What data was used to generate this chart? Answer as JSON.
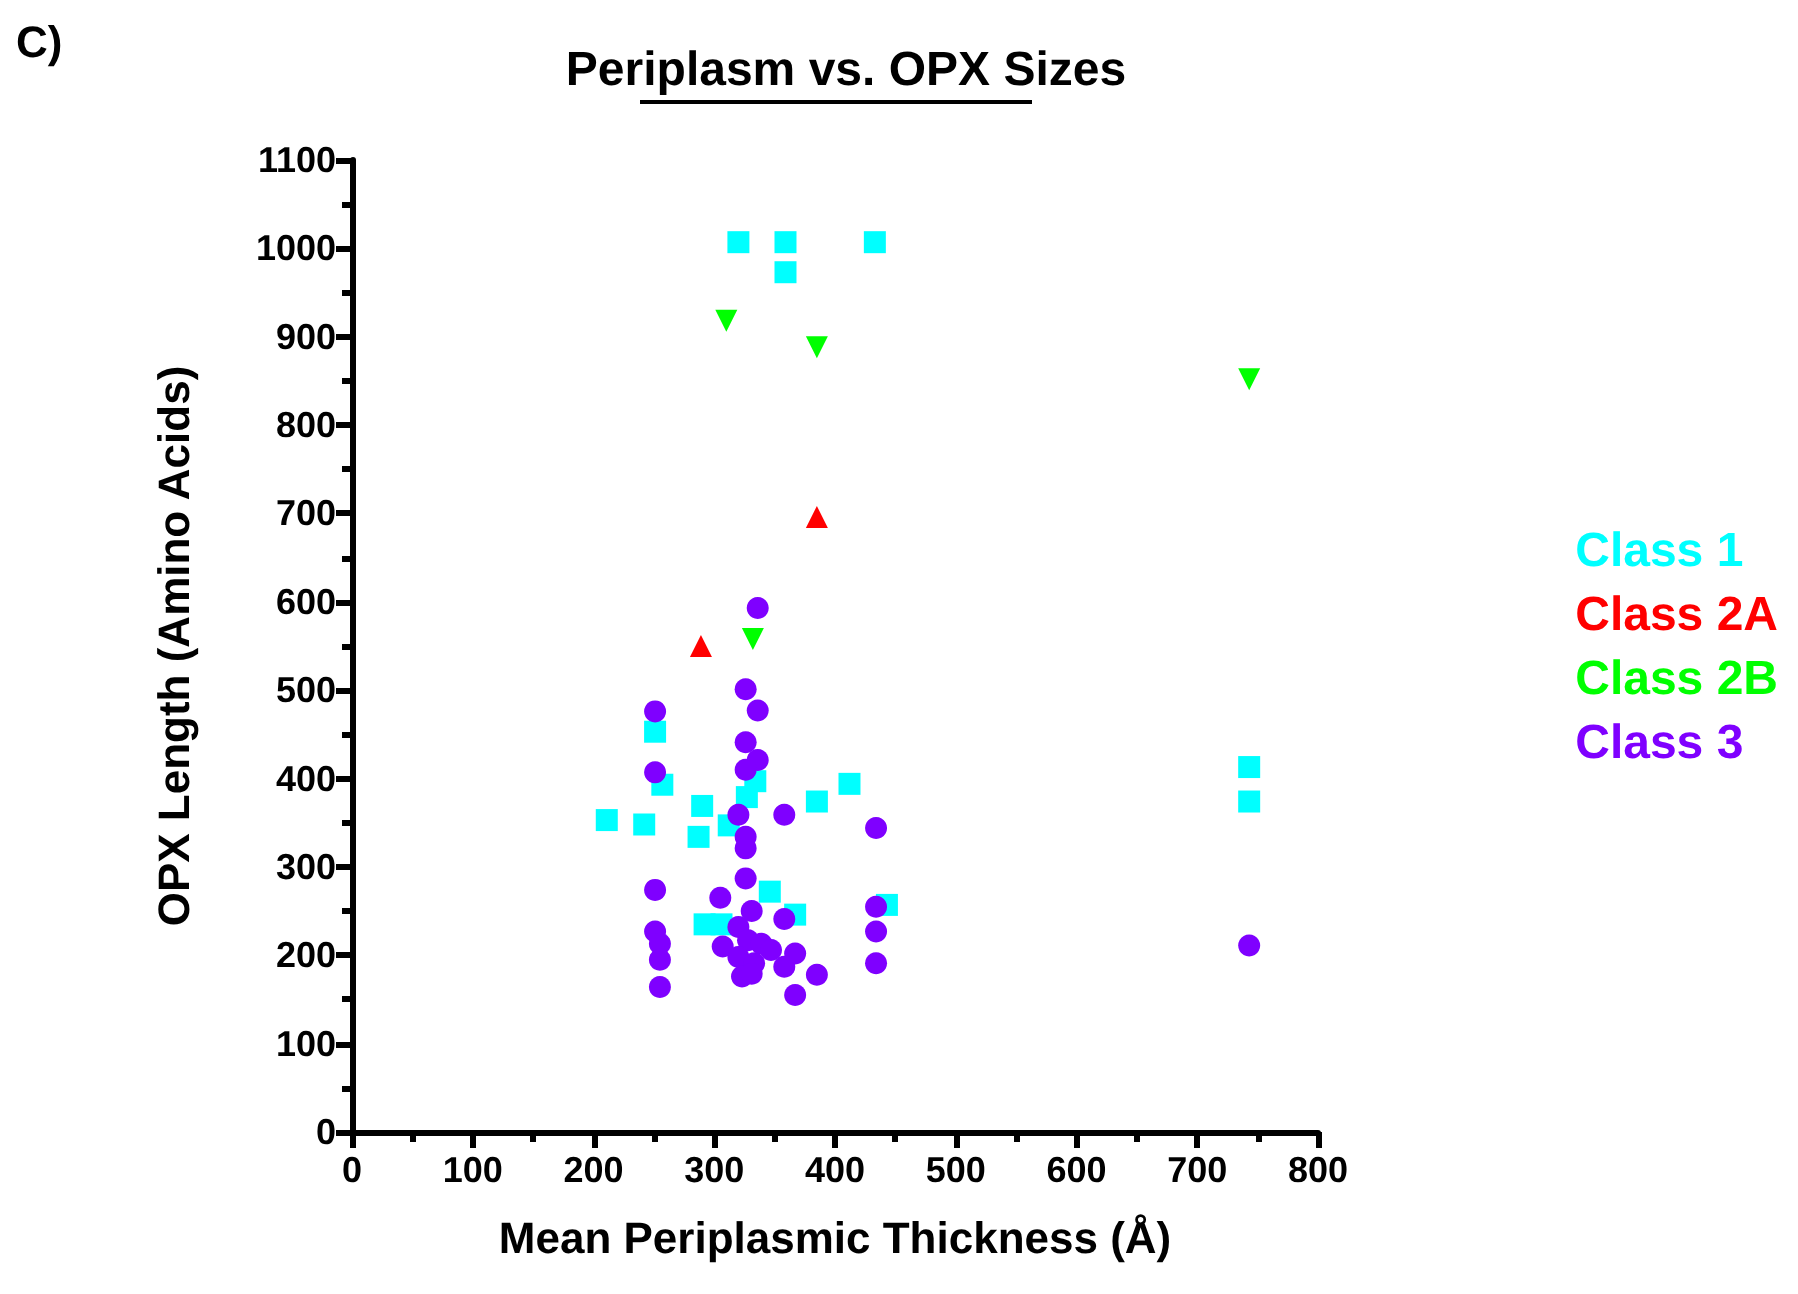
{
  "chart_data": {
    "type": "scatter",
    "title": "Periplasm vs. OPX Sizes",
    "xlabel": "Mean Periplasmic Thickness (Å)",
    "ylabel": "OPX Length (Amino Acids)",
    "annotations": [
      "C)"
    ],
    "xlim": [
      0,
      800
    ],
    "xticks": [
      0,
      100,
      200,
      300,
      400,
      500,
      600,
      700,
      800
    ],
    "ylim": [
      0,
      1100
    ],
    "yticks": [
      0,
      100,
      200,
      300,
      400,
      500,
      600,
      700,
      800,
      900,
      1000,
      1100
    ],
    "grid": false,
    "legend": "right",
    "series": [
      {
        "name": "Class 1",
        "color": "#00ffff",
        "marker": "square",
        "x": [
          320,
          359,
          433,
          359,
          251,
          257,
          211,
          242,
          290,
          287,
          312,
          334,
          327,
          385,
          412,
          346,
          367,
          292,
          306,
          443,
          743,
          743
        ],
        "values": [
          1007,
          1007,
          1007,
          973,
          453,
          393,
          353,
          348,
          369,
          334,
          347,
          397,
          379,
          374,
          394,
          272,
          246,
          235,
          235,
          257,
          413,
          374
        ]
      },
      {
        "name": "Class 2A",
        "color": "#ff0000",
        "marker": "triangle",
        "x": [
          385,
          289
        ],
        "values": [
          696,
          550
        ]
      },
      {
        "name": "Class 2B",
        "color": "#00ff00",
        "marker": "triangle-down",
        "x": [
          310,
          385,
          332,
          743
        ],
        "values": [
          918,
          888,
          558,
          852
        ]
      },
      {
        "name": "Class 3",
        "color": "#7f00ff",
        "marker": "circle",
        "x": [
          336,
          326,
          336,
          251,
          326,
          336,
          251,
          326,
          320,
          358,
          434,
          326,
          326,
          326,
          251,
          305,
          331,
          358,
          434,
          251,
          434,
          255,
          320,
          328,
          339,
          347,
          307,
          320,
          333,
          367,
          358,
          255,
          434,
          385,
          323,
          331,
          255,
          367,
          743
        ],
        "values": [
          593,
          501,
          477,
          476,
          441,
          421,
          407,
          410,
          359,
          359,
          344,
          334,
          321,
          287,
          274,
          265,
          250,
          241,
          255,
          227,
          227,
          213,
          232,
          217,
          213,
          206,
          210,
          198,
          191,
          202,
          187,
          195,
          191,
          178,
          176,
          179,
          164,
          155,
          211
        ]
      }
    ]
  }
}
